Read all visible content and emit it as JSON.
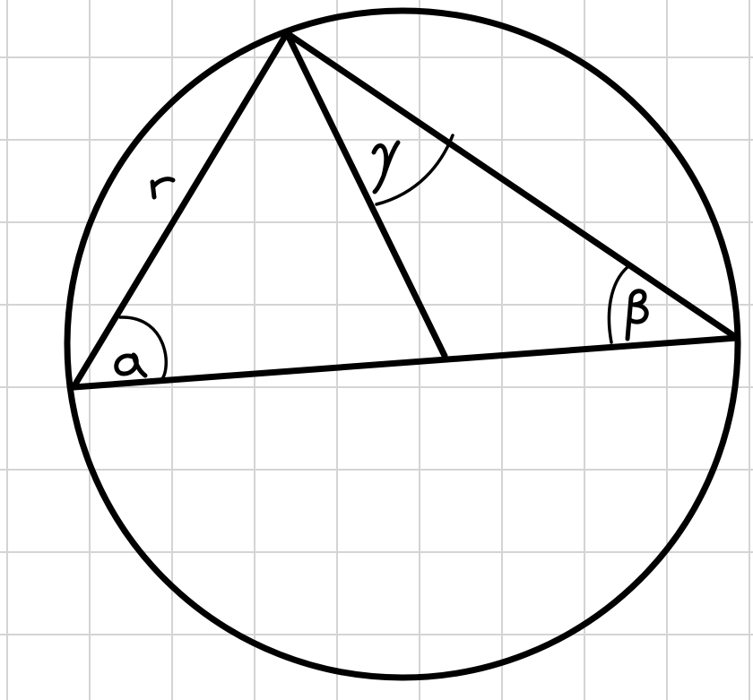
{
  "labels": {
    "side": "r",
    "angle_a": "α",
    "angle_b": "β",
    "angle_c": "γ"
  },
  "colors": {
    "background": "#ffffff",
    "grid": "#d4d4d4",
    "ink": "#000000"
  }
}
